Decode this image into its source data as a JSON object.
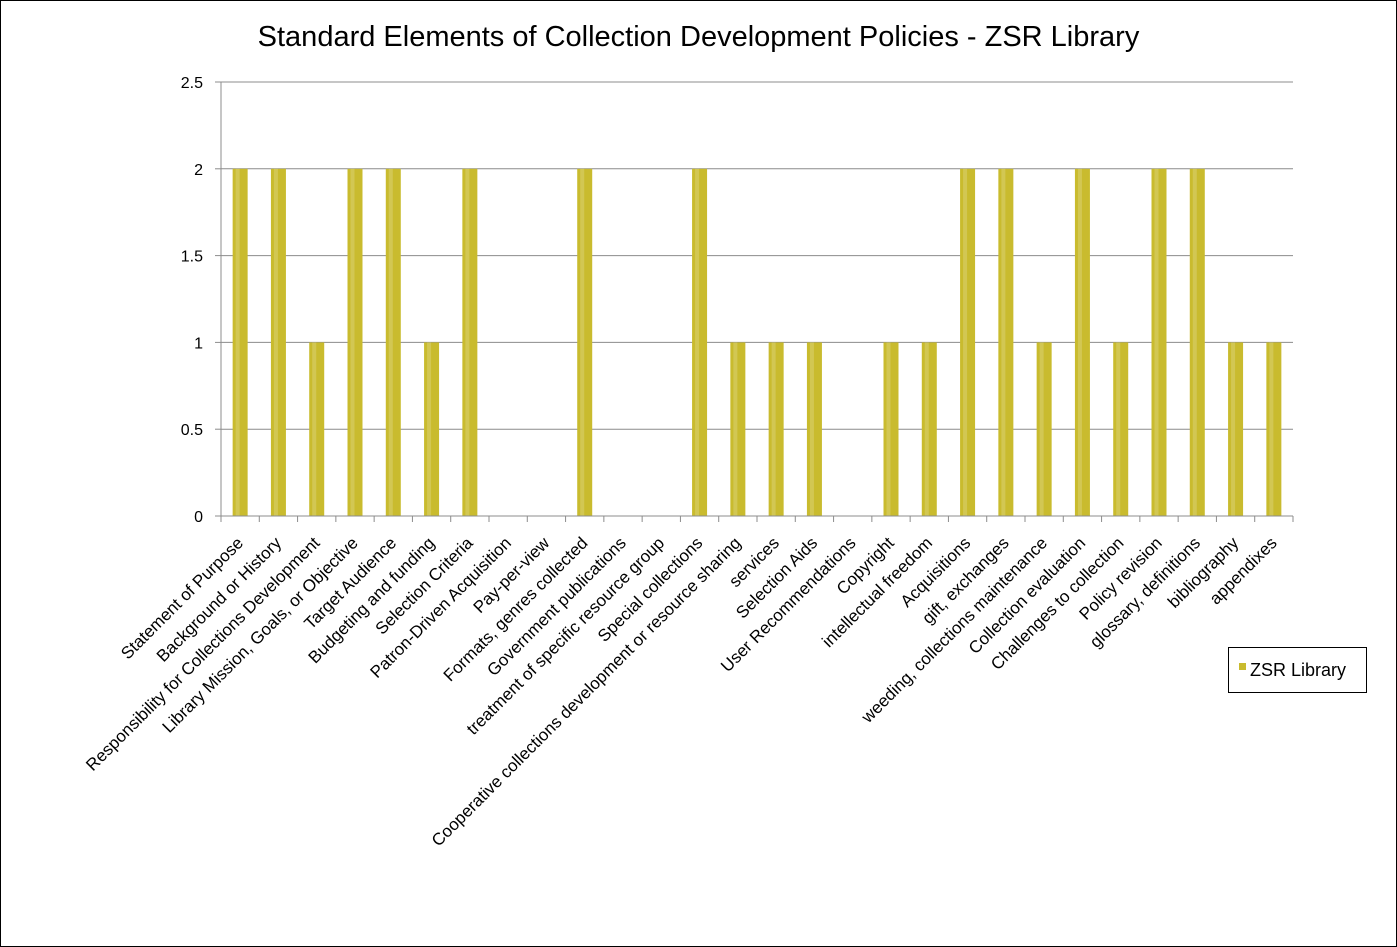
{
  "chart_data": {
    "type": "bar",
    "title": "Standard Elements of Collection Development Policies - ZSR Library",
    "xlabel": "",
    "ylabel": "",
    "ylim": [
      0,
      2.5
    ],
    "yticks": [
      "0",
      "0.5",
      "1",
      "1.5",
      "2",
      "2.5"
    ],
    "grid": true,
    "legend_position": "right",
    "bar_color": "#c9bb2e",
    "grid_color": "#8c8c8c",
    "categories": [
      "Statement of Purpose",
      "Background or History",
      "Responsibility for Collections Development",
      "Library Mission, Goals, or Objective",
      "Target Audience",
      "Budgeting and funding",
      "Selection Criteria",
      "Patron-Driven Acquisition",
      "Pay-per-view",
      "Formats, genres collected",
      "Government publications",
      "treatment of specific resource group",
      "Special collections",
      "Cooperative collections development or resource sharing",
      "services",
      "Selection Aids",
      "User Recommendations",
      "Copyright",
      "intellectual freedom",
      "Acquisitions",
      "gift, exchanges",
      "weeding, collections maintenance",
      "Collection evaluation",
      "Challenges to collection",
      "Policy revision",
      "glossary, definitions",
      "bibliography",
      "appendixes"
    ],
    "series": [
      {
        "name": "ZSR Library",
        "values": [
          2,
          2,
          1,
          2,
          2,
          1,
          2,
          0,
          0,
          2,
          0,
          0,
          2,
          1,
          1,
          1,
          0,
          1,
          1,
          2,
          2,
          1,
          2,
          1,
          2,
          2,
          1,
          1
        ]
      }
    ]
  }
}
